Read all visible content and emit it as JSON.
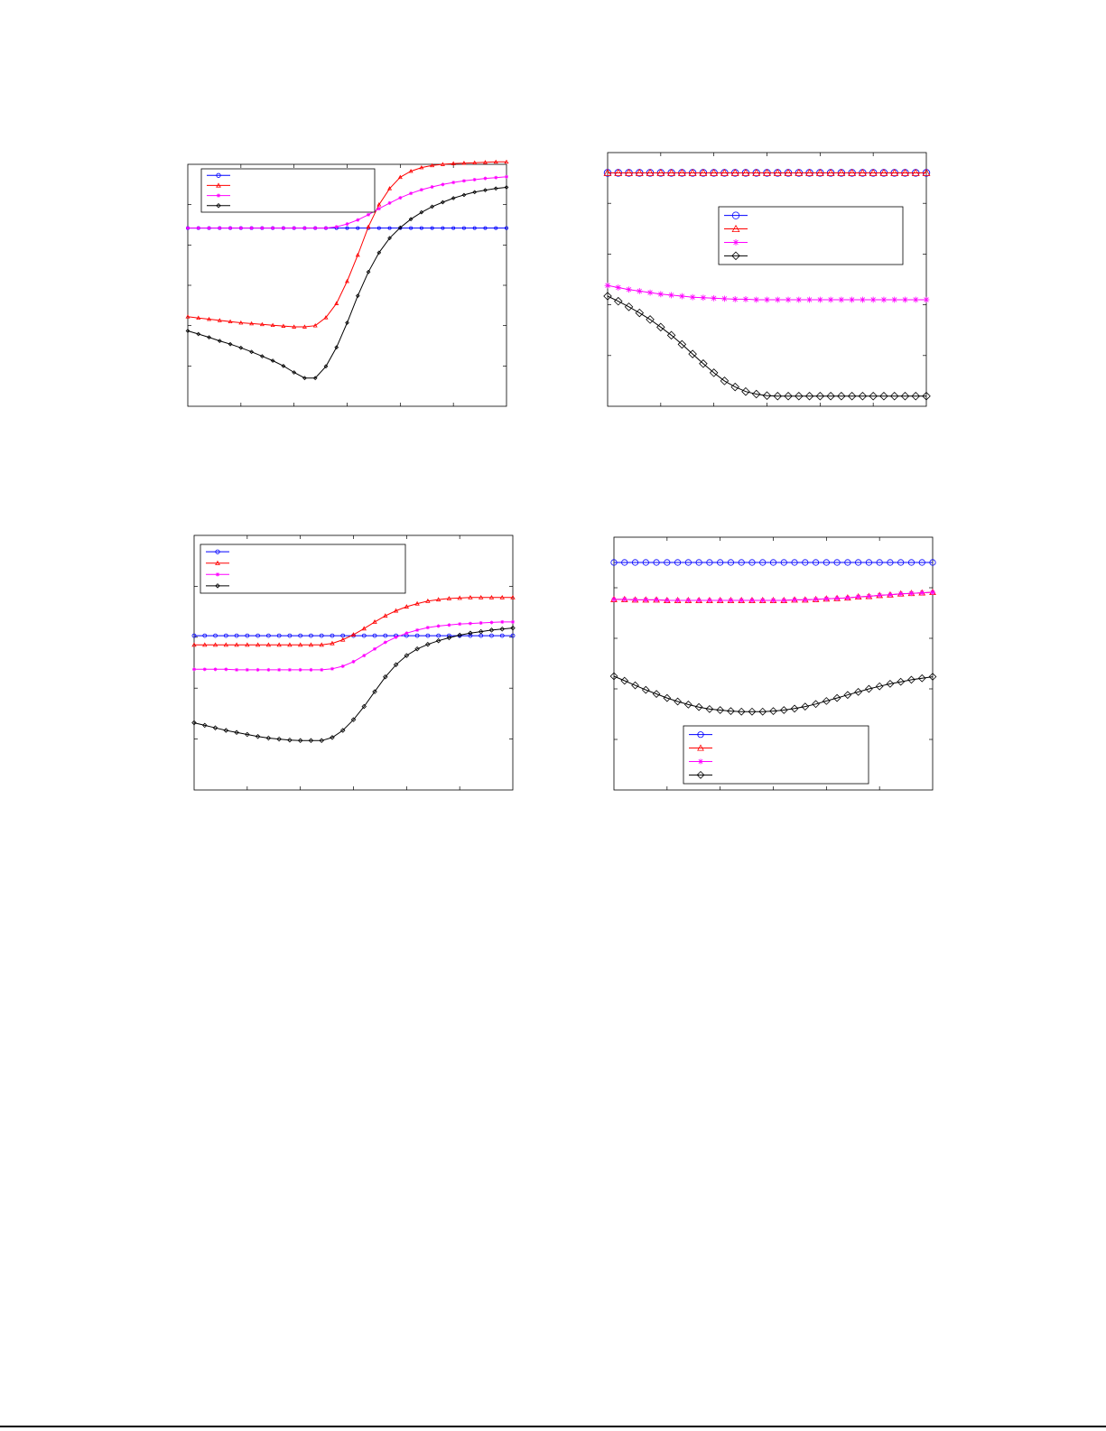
{
  "figure": {
    "colors": {
      "blue": "#0000ff",
      "red": "#ff0000",
      "magenta": "#ff00ff",
      "black": "#000000"
    }
  },
  "chart_data": [
    {
      "type": "line",
      "title": "",
      "xlabel": "",
      "ylabel": "",
      "xlim": [
        0,
        6
      ],
      "ylim": [
        0,
        6
      ],
      "grid": false,
      "legend": {
        "position": "top-left",
        "labels": [
          "",
          "",
          "",
          ""
        ]
      },
      "x": [
        0,
        0.2,
        0.4,
        0.6,
        0.8,
        1.0,
        1.2,
        1.4,
        1.6,
        1.8,
        2.0,
        2.2,
        2.4,
        2.6,
        2.8,
        3.0,
        3.2,
        3.4,
        3.6,
        3.8,
        4.0,
        4.2,
        4.4,
        4.6,
        4.8,
        5.0,
        5.2,
        5.4,
        5.6,
        5.8,
        6.0
      ],
      "series": [
        {
          "color": "blue",
          "marker": "circle",
          "markerSize": 1.6,
          "values": [
            4.42,
            4.42,
            4.42,
            4.42,
            4.42,
            4.42,
            4.42,
            4.42,
            4.42,
            4.42,
            4.42,
            4.42,
            4.42,
            4.42,
            4.42,
            4.42,
            4.42,
            4.42,
            4.42,
            4.42,
            4.42,
            4.42,
            4.42,
            4.42,
            4.42,
            4.42,
            4.42,
            4.42,
            4.42,
            4.42,
            4.42
          ]
        },
        {
          "color": "red",
          "marker": "triangle",
          "markerSize": 1.8,
          "values": [
            2.22,
            2.19,
            2.16,
            2.13,
            2.1,
            2.07,
            2.05,
            2.03,
            2.01,
            1.99,
            1.97,
            1.97,
            2.0,
            2.2,
            2.55,
            3.1,
            3.75,
            4.45,
            5.0,
            5.4,
            5.68,
            5.83,
            5.92,
            5.97,
            6.0,
            6.02,
            6.03,
            6.04,
            6.05,
            6.06,
            6.06
          ]
        },
        {
          "color": "magenta",
          "marker": "star",
          "markerSize": 2.0,
          "values": [
            4.42,
            4.42,
            4.42,
            4.42,
            4.42,
            4.42,
            4.42,
            4.42,
            4.42,
            4.42,
            4.42,
            4.42,
            4.42,
            4.42,
            4.45,
            4.52,
            4.62,
            4.75,
            4.9,
            5.04,
            5.17,
            5.28,
            5.37,
            5.44,
            5.5,
            5.55,
            5.59,
            5.62,
            5.65,
            5.67,
            5.69
          ]
        },
        {
          "color": "black",
          "marker": "diamond",
          "markerSize": 1.8,
          "values": [
            1.87,
            1.79,
            1.71,
            1.62,
            1.54,
            1.45,
            1.35,
            1.24,
            1.13,
            1.0,
            0.84,
            0.7,
            0.7,
            0.99,
            1.46,
            2.07,
            2.74,
            3.33,
            3.81,
            4.17,
            4.43,
            4.64,
            4.81,
            4.95,
            5.06,
            5.16,
            5.24,
            5.31,
            5.36,
            5.4,
            5.43
          ]
        }
      ]
    },
    {
      "type": "line",
      "title": "",
      "xlabel": "",
      "ylabel": "",
      "xlim": [
        0,
        6
      ],
      "ylim": [
        0,
        5
      ],
      "grid": false,
      "legend": {
        "position": "center-right",
        "labels": [
          "",
          "",
          "",
          ""
        ]
      },
      "x": [
        0,
        0.2,
        0.4,
        0.6,
        0.8,
        1.0,
        1.2,
        1.4,
        1.6,
        1.8,
        2.0,
        2.2,
        2.4,
        2.6,
        2.8,
        3.0,
        3.2,
        3.4,
        3.6,
        3.8,
        4.0,
        4.2,
        4.4,
        4.6,
        4.8,
        5.0,
        5.2,
        5.4,
        5.6,
        5.8,
        6.0
      ],
      "series": [
        {
          "color": "blue",
          "marker": "circle",
          "markerSize": 3.8,
          "values": [
            4.6,
            4.6,
            4.6,
            4.6,
            4.6,
            4.6,
            4.6,
            4.6,
            4.6,
            4.6,
            4.6,
            4.6,
            4.6,
            4.6,
            4.6,
            4.6,
            4.6,
            4.6,
            4.6,
            4.6,
            4.6,
            4.6,
            4.6,
            4.6,
            4.6,
            4.6,
            4.6,
            4.6,
            4.6,
            4.6,
            4.6
          ]
        },
        {
          "color": "red",
          "marker": "triangle",
          "markerSize": 3.8,
          "values": [
            4.6,
            4.6,
            4.6,
            4.6,
            4.6,
            4.6,
            4.6,
            4.6,
            4.6,
            4.6,
            4.6,
            4.6,
            4.6,
            4.6,
            4.6,
            4.6,
            4.6,
            4.6,
            4.6,
            4.6,
            4.6,
            4.6,
            4.6,
            4.6,
            4.6,
            4.6,
            4.6,
            4.6,
            4.6,
            4.6,
            4.6
          ]
        },
        {
          "color": "magenta",
          "marker": "star",
          "markerSize": 3.4,
          "values": [
            2.38,
            2.34,
            2.3,
            2.27,
            2.24,
            2.21,
            2.19,
            2.17,
            2.15,
            2.14,
            2.13,
            2.12,
            2.11,
            2.11,
            2.1,
            2.1,
            2.1,
            2.1,
            2.1,
            2.1,
            2.1,
            2.1,
            2.1,
            2.1,
            2.1,
            2.1,
            2.1,
            2.1,
            2.1,
            2.1,
            2.1
          ]
        },
        {
          "color": "black",
          "marker": "diamond",
          "markerSize": 4.2,
          "values": [
            2.17,
            2.07,
            1.96,
            1.84,
            1.71,
            1.56,
            1.4,
            1.22,
            1.03,
            0.84,
            0.66,
            0.5,
            0.38,
            0.29,
            0.24,
            0.21,
            0.2,
            0.2,
            0.2,
            0.2,
            0.2,
            0.2,
            0.2,
            0.2,
            0.2,
            0.2,
            0.2,
            0.2,
            0.2,
            0.2,
            0.2
          ]
        }
      ]
    },
    {
      "type": "line",
      "title": "",
      "xlabel": "",
      "ylabel": "",
      "xlim": [
        0,
        6
      ],
      "ylim": [
        0,
        5
      ],
      "grid": false,
      "legend": {
        "position": "top-left",
        "labels": [
          "",
          "",
          "",
          ""
        ]
      },
      "x": [
        0,
        0.2,
        0.4,
        0.6,
        0.8,
        1.0,
        1.2,
        1.4,
        1.6,
        1.8,
        2.0,
        2.2,
        2.4,
        2.6,
        2.8,
        3.0,
        3.2,
        3.4,
        3.6,
        3.8,
        4.0,
        4.2,
        4.4,
        4.6,
        4.8,
        5.0,
        5.2,
        5.4,
        5.6,
        5.8,
        6.0
      ],
      "series": [
        {
          "color": "blue",
          "marker": "circle",
          "markerSize": 2.0,
          "values": [
            3.03,
            3.03,
            3.03,
            3.03,
            3.03,
            3.03,
            3.03,
            3.03,
            3.03,
            3.03,
            3.03,
            3.03,
            3.03,
            3.03,
            3.03,
            3.03,
            3.03,
            3.03,
            3.03,
            3.03,
            3.03,
            3.03,
            3.03,
            3.03,
            3.03,
            3.03,
            3.03,
            3.03,
            3.03,
            3.03,
            3.03
          ]
        },
        {
          "color": "red",
          "marker": "triangle",
          "markerSize": 2.0,
          "values": [
            2.85,
            2.85,
            2.85,
            2.85,
            2.85,
            2.85,
            2.85,
            2.85,
            2.85,
            2.85,
            2.85,
            2.85,
            2.85,
            2.88,
            2.95,
            3.05,
            3.17,
            3.3,
            3.42,
            3.52,
            3.6,
            3.66,
            3.71,
            3.74,
            3.76,
            3.77,
            3.78,
            3.78,
            3.78,
            3.78,
            3.78
          ]
        },
        {
          "color": "magenta",
          "marker": "star",
          "markerSize": 2.0,
          "values": [
            2.37,
            2.37,
            2.37,
            2.37,
            2.36,
            2.36,
            2.36,
            2.36,
            2.36,
            2.36,
            2.36,
            2.36,
            2.36,
            2.38,
            2.43,
            2.52,
            2.64,
            2.77,
            2.9,
            3.0,
            3.08,
            3.14,
            3.19,
            3.22,
            3.24,
            3.26,
            3.27,
            3.28,
            3.29,
            3.3,
            3.3
          ]
        },
        {
          "color": "black",
          "marker": "diamond",
          "markerSize": 2.2,
          "values": [
            1.32,
            1.27,
            1.22,
            1.17,
            1.13,
            1.09,
            1.05,
            1.02,
            1.0,
            0.98,
            0.97,
            0.97,
            0.97,
            1.03,
            1.17,
            1.38,
            1.64,
            1.93,
            2.22,
            2.46,
            2.64,
            2.77,
            2.86,
            2.93,
            2.99,
            3.04,
            3.08,
            3.11,
            3.14,
            3.16,
            3.18
          ]
        }
      ]
    },
    {
      "type": "line",
      "title": "",
      "xlabel": "",
      "ylabel": "",
      "xlim": [
        0,
        6
      ],
      "ylim": [
        0,
        5
      ],
      "grid": false,
      "legend": {
        "position": "bottom-center",
        "labels": [
          "",
          "",
          "",
          ""
        ]
      },
      "x": [
        0,
        0.2,
        0.4,
        0.6,
        0.8,
        1.0,
        1.2,
        1.4,
        1.6,
        1.8,
        2.0,
        2.2,
        2.4,
        2.6,
        2.8,
        3.0,
        3.2,
        3.4,
        3.6,
        3.8,
        4.0,
        4.2,
        4.4,
        4.6,
        4.8,
        5.0,
        5.2,
        5.4,
        5.6,
        5.8,
        6.0
      ],
      "series": [
        {
          "color": "blue",
          "marker": "circle",
          "markerSize": 3.2,
          "values": [
            4.5,
            4.5,
            4.5,
            4.5,
            4.5,
            4.5,
            4.5,
            4.5,
            4.5,
            4.5,
            4.5,
            4.5,
            4.5,
            4.5,
            4.5,
            4.5,
            4.5,
            4.5,
            4.5,
            4.5,
            4.5,
            4.5,
            4.5,
            4.5,
            4.5,
            4.5,
            4.5,
            4.5,
            4.5,
            4.5,
            4.5
          ]
        },
        {
          "color": "red",
          "marker": "triangle",
          "markerSize": 3.2,
          "values": [
            3.77,
            3.77,
            3.76,
            3.76,
            3.76,
            3.75,
            3.75,
            3.75,
            3.75,
            3.75,
            3.75,
            3.75,
            3.75,
            3.75,
            3.75,
            3.75,
            3.75,
            3.76,
            3.76,
            3.77,
            3.78,
            3.79,
            3.8,
            3.82,
            3.83,
            3.85,
            3.86,
            3.88,
            3.89,
            3.9,
            3.91
          ]
        },
        {
          "color": "magenta",
          "marker": "star",
          "markerSize": 3.0,
          "values": [
            3.77,
            3.77,
            3.76,
            3.76,
            3.76,
            3.75,
            3.75,
            3.75,
            3.75,
            3.75,
            3.75,
            3.75,
            3.75,
            3.75,
            3.75,
            3.75,
            3.75,
            3.76,
            3.76,
            3.77,
            3.78,
            3.79,
            3.8,
            3.82,
            3.83,
            3.85,
            3.86,
            3.88,
            3.89,
            3.9,
            3.91
          ]
        },
        {
          "color": "black",
          "marker": "diamond",
          "markerSize": 3.8,
          "values": [
            2.25,
            2.16,
            2.07,
            1.98,
            1.9,
            1.82,
            1.75,
            1.69,
            1.64,
            1.6,
            1.58,
            1.56,
            1.55,
            1.55,
            1.55,
            1.56,
            1.58,
            1.61,
            1.65,
            1.7,
            1.76,
            1.82,
            1.88,
            1.94,
            2.0,
            2.05,
            2.1,
            2.14,
            2.18,
            2.21,
            2.24
          ]
        }
      ]
    }
  ]
}
